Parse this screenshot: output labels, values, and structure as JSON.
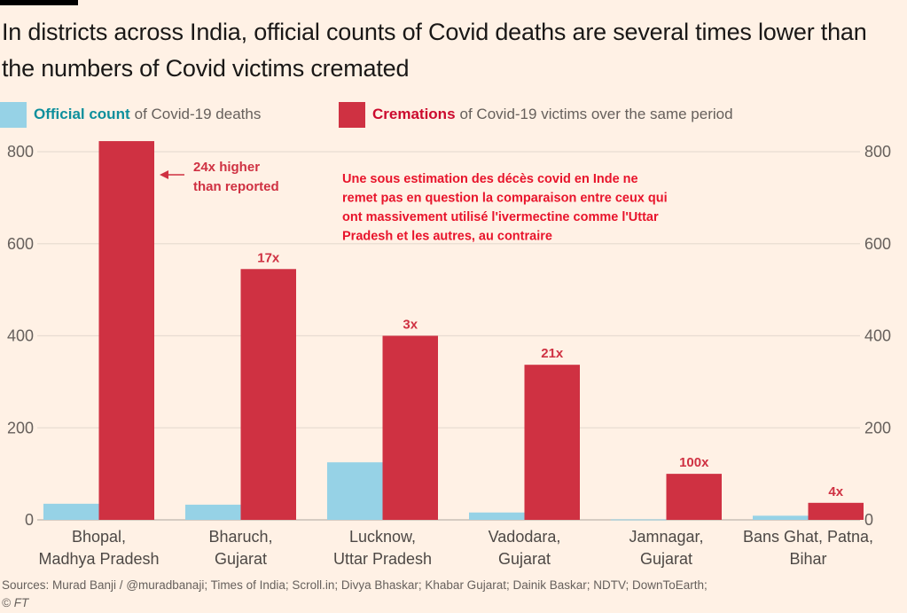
{
  "title": "In districts across India, official counts of Covid deaths are several times lower than the numbers of Covid victims cremated",
  "legend": [
    {
      "strong": "Official count",
      "rest": "of Covid-19 deaths",
      "color": "#96d2e6",
      "text_color": "#0d8f9c"
    },
    {
      "strong": "Cremations",
      "rest": "of Covid-19 victims over the same period",
      "color": "#cf3142",
      "text_color": "#cc0a2e"
    }
  ],
  "annotation_bhopal": [
    "24x higher",
    "than reported"
  ],
  "overlay_note": [
    "Une sous estimation des décès covid en Inde ne",
    "remet pas en question la comparaison entre ceux qui",
    "ont massivement utilisé l'ivermectine comme l'Uttar",
    "Pradesh et les autres, au contraire"
  ],
  "sources": "Sources: Murad Banji / @muradbanaji; Times of India; Scroll.in; Divya Bhaskar; Khabar Gujarat; Dainik Baskar; NDTV; DownToEarth;",
  "copyright": "© FT",
  "chart_data": {
    "type": "bar",
    "title": "In districts across India, official counts of Covid deaths are several times lower than the numbers of Covid victims cremated",
    "xlabel": "",
    "ylabel": "",
    "ylim": [
      0,
      800
    ],
    "yticks": [
      0,
      200,
      400,
      600,
      800
    ],
    "grid": true,
    "axis_sides": [
      "left",
      "right"
    ],
    "legend_position": "top-left",
    "categories": [
      [
        "Bhopal,",
        "Madhya Pradesh"
      ],
      [
        "Bharuch,",
        "Gujarat"
      ],
      [
        "Lucknow,",
        "Uttar Pradesh"
      ],
      [
        "Vadodara,",
        "Gujarat"
      ],
      [
        "Jamnagar,",
        "Gujarat"
      ],
      [
        "Bans Ghat, Patna,",
        "Bihar"
      ]
    ],
    "series": [
      {
        "name": "Official count of Covid-19 deaths",
        "color": "#96d2e6",
        "values": [
          35,
          33,
          125,
          16,
          1,
          9
        ]
      },
      {
        "name": "Cremations of Covid-19 victims over the same period",
        "color": "#cf3142",
        "values": [
          823,
          545,
          400,
          337,
          100,
          37
        ]
      }
    ],
    "ratio_labels": [
      "",
      "17x",
      "3x",
      "21x",
      "100x",
      "4x"
    ]
  }
}
